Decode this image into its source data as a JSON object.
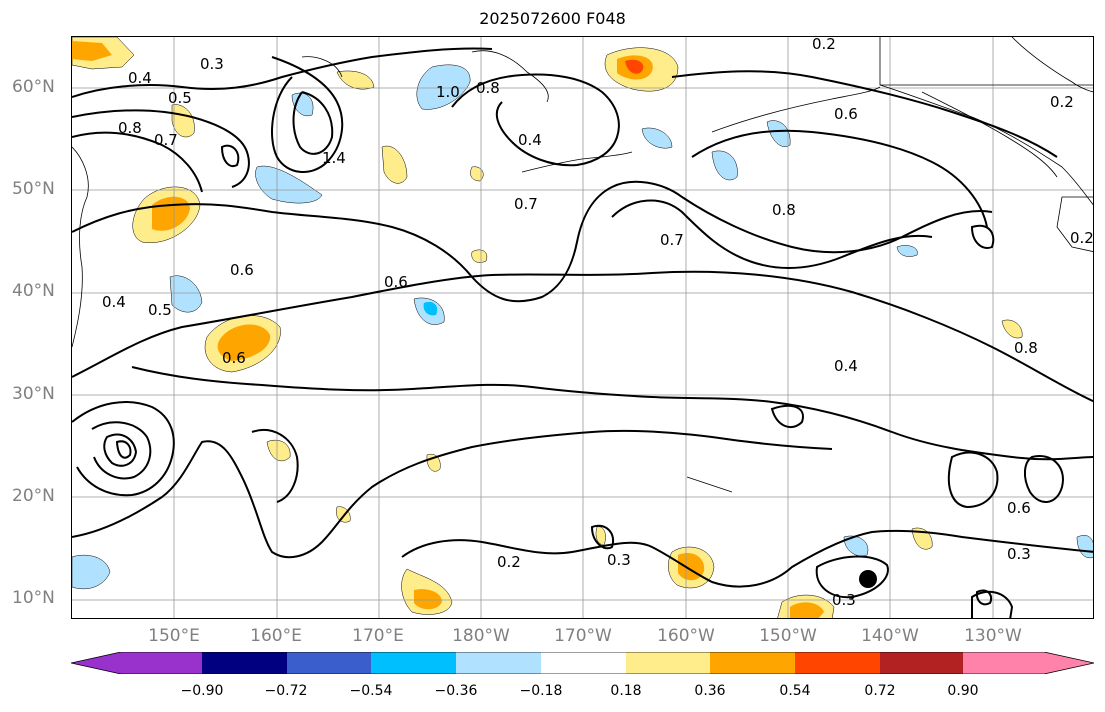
{
  "title": "2025072600 F048",
  "lat_labels": [
    {
      "text": "60°N",
      "lat": 60
    },
    {
      "text": "50°N",
      "lat": 50
    },
    {
      "text": "40°N",
      "lat": 40
    },
    {
      "text": "30°N",
      "lat": 30
    },
    {
      "text": "20°N",
      "lat": 20
    },
    {
      "text": "10°N",
      "lat": 10
    }
  ],
  "lon_labels": [
    {
      "text": "150°E",
      "lon": 150
    },
    {
      "text": "160°E",
      "lon": 160
    },
    {
      "text": "170°E",
      "lon": 170
    },
    {
      "text": "180°W",
      "lon": 180
    },
    {
      "text": "170°W",
      "lon": 190
    },
    {
      "text": "160°W",
      "lon": 200
    },
    {
      "text": "150°W",
      "lon": 210
    },
    {
      "text": "140°W",
      "lon": 220
    },
    {
      "text": "130°W",
      "lon": 230
    }
  ],
  "map_extent": {
    "lon_min": 140,
    "lon_max": 240,
    "lat_min": 8,
    "lat_max": 65
  },
  "contour_labels": [
    "0.3",
    "0.4",
    "0.5",
    "0.8",
    "0.7",
    "1.0",
    "1.4",
    "0.6",
    "0.5",
    "0.4",
    "0.8",
    "0.4",
    "0.7",
    "0.6",
    "0.2",
    "0.6",
    "0.7",
    "0.8",
    "0.6",
    "0.4",
    "0.2",
    "0.3",
    "0.3",
    "0.6",
    "0.3",
    "0.8",
    "0.2",
    "0.2"
  ],
  "colorbar": {
    "colors": [
      "#9932cc",
      "#000080",
      "#3a5fcd",
      "#00bfff",
      "#b0e2ff",
      "#ffffff",
      "#ffec8b",
      "#ffa500",
      "#ff4500",
      "#b22222",
      "#ff82ab"
    ],
    "ticks": [
      "−0.90",
      "−0.72",
      "−0.54",
      "−0.36",
      "−0.18",
      "0.18",
      "0.36",
      "0.54",
      "0.72",
      "0.90"
    ]
  },
  "marker": {
    "lon": 217.5,
    "lat": 11.8
  }
}
